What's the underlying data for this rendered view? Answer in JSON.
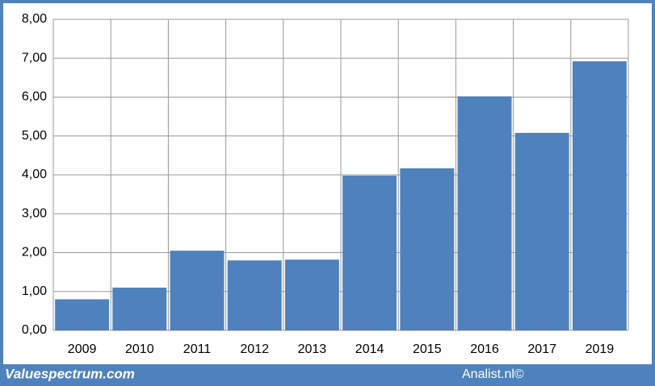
{
  "chart_data": {
    "type": "bar",
    "categories": [
      "2009",
      "2010",
      "2011",
      "2012",
      "2013",
      "2014",
      "2015",
      "2016",
      "2017",
      "2019"
    ],
    "values": [
      0.8,
      1.1,
      2.05,
      1.8,
      1.82,
      3.98,
      4.17,
      6.02,
      5.08,
      6.92
    ],
    "color": "#4f81bd",
    "ylim": [
      0,
      8
    ],
    "yticks": [
      {
        "value": 0,
        "label": "0,00"
      },
      {
        "value": 1,
        "label": "1,00"
      },
      {
        "value": 2,
        "label": "2,00"
      },
      {
        "value": 3,
        "label": "3,00"
      },
      {
        "value": 4,
        "label": "4,00"
      },
      {
        "value": 5,
        "label": "5,00"
      },
      {
        "value": 6,
        "label": "6,00"
      },
      {
        "value": 7,
        "label": "7,00"
      },
      {
        "value": 8,
        "label": "8,00"
      }
    ],
    "grid": true,
    "footer_left": "Valuespectrum.com",
    "footer_right": "Analist.nl©"
  }
}
